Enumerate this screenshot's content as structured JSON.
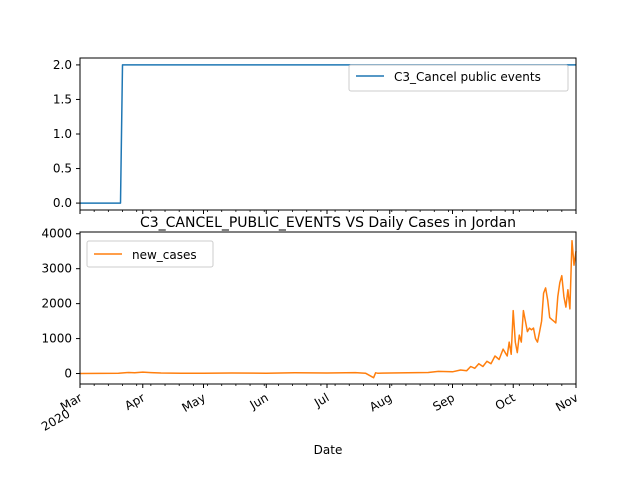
{
  "chart_data": [
    {
      "type": "line",
      "title": "",
      "xlabel": "",
      "ylabel": "",
      "xlim": [
        "2020-03-01",
        "2020-11-01"
      ],
      "ylim": [
        -0.1,
        2.1
      ],
      "yticks": [
        0.0,
        0.5,
        1.0,
        1.5,
        2.0
      ],
      "ytick_labels": [
        "0.0",
        "0.5",
        "1.0",
        "1.5",
        "2.0"
      ],
      "legend": "top-right",
      "series": [
        {
          "name": "C3_Cancel public events",
          "color": "#1f77b4",
          "x": [
            "2020-03-01",
            "2020-03-21",
            "2020-03-22",
            "2020-11-01"
          ],
          "y": [
            0,
            0,
            2,
            2
          ]
        }
      ]
    },
    {
      "type": "line",
      "title": "C3_CANCEL_PUBLIC_EVENTS VS Daily Cases in Jordan",
      "xlabel": "Date",
      "ylabel": "",
      "xlim": [
        "2020-03-01",
        "2020-11-01"
      ],
      "ylim": [
        -300,
        4050
      ],
      "yticks": [
        0,
        1000,
        2000,
        3000,
        4000
      ],
      "ytick_labels": [
        "0",
        "1000",
        "2000",
        "3000",
        "4000"
      ],
      "xtick_dates": [
        "2020-03-01",
        "2020-04-01",
        "2020-05-01",
        "2020-06-01",
        "2020-07-01",
        "2020-08-01",
        "2020-09-01",
        "2020-10-01",
        "2020-11-01"
      ],
      "xtick_labels": [
        "Mar\n2020",
        "Apr",
        "May",
        "Jun",
        "Jul",
        "Aug",
        "Sep",
        "Oct",
        "Nov"
      ],
      "legend": "top-left",
      "series": [
        {
          "name": "new_cases",
          "color": "#ff7f0e",
          "x": [
            "2020-03-01",
            "2020-03-20",
            "2020-03-25",
            "2020-03-28",
            "2020-04-01",
            "2020-04-05",
            "2020-04-10",
            "2020-04-20",
            "2020-05-01",
            "2020-05-15",
            "2020-06-01",
            "2020-06-15",
            "2020-07-01",
            "2020-07-15",
            "2020-07-20",
            "2020-07-24",
            "2020-07-25",
            "2020-07-26",
            "2020-08-01",
            "2020-08-10",
            "2020-08-20",
            "2020-08-25",
            "2020-09-01",
            "2020-09-05",
            "2020-09-08",
            "2020-09-10",
            "2020-09-12",
            "2020-09-14",
            "2020-09-16",
            "2020-09-18",
            "2020-09-20",
            "2020-09-22",
            "2020-09-24",
            "2020-09-26",
            "2020-09-28",
            "2020-09-29",
            "2020-09-30",
            "2020-10-01",
            "2020-10-02",
            "2020-10-03",
            "2020-10-04",
            "2020-10-05",
            "2020-10-06",
            "2020-10-07",
            "2020-10-08",
            "2020-10-09",
            "2020-10-10",
            "2020-10-11",
            "2020-10-12",
            "2020-10-13",
            "2020-10-14",
            "2020-10-15",
            "2020-10-16",
            "2020-10-17",
            "2020-10-18",
            "2020-10-19",
            "2020-10-20",
            "2020-10-21",
            "2020-10-22",
            "2020-10-23",
            "2020-10-24",
            "2020-10-25",
            "2020-10-26",
            "2020-10-27",
            "2020-10-28",
            "2020-10-29",
            "2020-10-30",
            "2020-10-31",
            "2020-11-01"
          ],
          "y": [
            0,
            5,
            30,
            20,
            40,
            25,
            15,
            10,
            5,
            15,
            10,
            20,
            15,
            25,
            10,
            -120,
            20,
            10,
            15,
            20,
            30,
            60,
            50,
            100,
            80,
            200,
            150,
            280,
            200,
            350,
            280,
            500,
            400,
            700,
            500,
            900,
            550,
            1800,
            900,
            600,
            1100,
            900,
            1800,
            1500,
            1200,
            1300,
            1250,
            1300,
            1000,
            900,
            1200,
            1500,
            2300,
            2450,
            2100,
            1600,
            1550,
            1500,
            1450,
            2200,
            2600,
            2800,
            2200,
            1900,
            2400,
            1850,
            3800,
            3100,
            3500
          ]
        }
      ]
    }
  ]
}
